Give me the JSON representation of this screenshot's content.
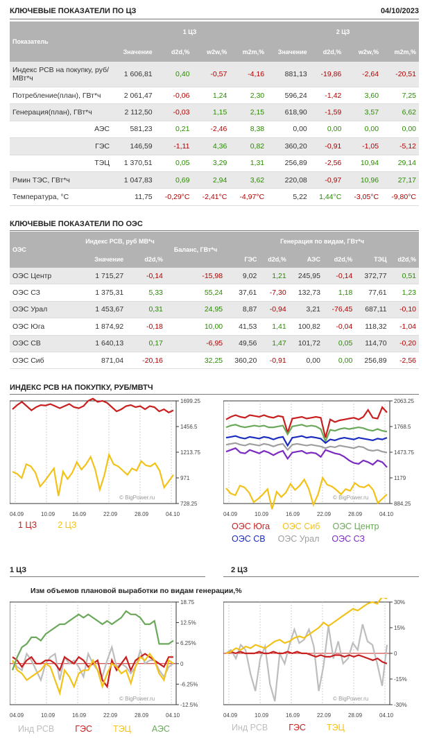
{
  "t1": {
    "title": "КЛЮЧЕВЫЕ ПОКАЗАТЕЛИ ПО ЦЗ",
    "date": "04/10/2023",
    "col0": "Показатель",
    "grp1": "1 ЦЗ",
    "grp2": "2 ЦЗ",
    "sub": [
      "Значение",
      "d2d,%",
      "w2w,%",
      "m2m,%",
      "Значение",
      "d2d,%",
      "w2w,%",
      "m2m,%"
    ],
    "rows": [
      {
        "label": "Индекс РСВ на покупку, руб/МВт*ч",
        "v": [
          "1 606,81",
          "0,40",
          "-0,57",
          "-4,16",
          "881,13",
          "-19,86",
          "-2,64",
          "-20,51"
        ]
      },
      {
        "label": "Потребление(план), ГВт*ч",
        "v": [
          "2 061,47",
          "-0,06",
          "1,24",
          "2,30",
          "596,24",
          "-1,42",
          "3,60",
          "7,25"
        ]
      },
      {
        "label": "Генерация(план), ГВт*ч",
        "v": [
          "2 112,50",
          "-0,03",
          "1,15",
          "2,15",
          "618,90",
          "-1,59",
          "3,57",
          "6,62"
        ]
      },
      {
        "label": "АЭС",
        "v": [
          "581,23",
          "0,21",
          "-2,46",
          "8,38",
          "0,00",
          "0,00",
          "0,00",
          "0,00"
        ]
      },
      {
        "label": "ГЭС",
        "v": [
          "146,59",
          "-1,11",
          "4,36",
          "0,82",
          "360,20",
          "-0,91",
          "-1,05",
          "-5,12"
        ]
      },
      {
        "label": "ТЭЦ",
        "v": [
          "1 370,51",
          "0,05",
          "3,29",
          "1,31",
          "256,89",
          "-2,56",
          "10,94",
          "29,14"
        ]
      },
      {
        "label": "Рмин ТЭС, ГВт*ч",
        "v": [
          "1 047,83",
          "0,69",
          "2,94",
          "3,62",
          "220,08",
          "-0,97",
          "10,96",
          "27,17"
        ]
      },
      {
        "label": "Температура, °С",
        "v": [
          "11,75",
          "-0,29°С",
          "-2,41°С",
          "-4,97°С",
          "5,22",
          "1,44°С",
          "-3,05°С",
          "-9,80°С"
        ]
      }
    ]
  },
  "t2": {
    "title": "КЛЮЧЕВЫЕ ПОКАЗАТЕЛИ ПО ОЭС",
    "col0": "ОЭС",
    "grp1": "Индекс РСВ, руб МВ*ч",
    "grp2": "Баланс, ГВт*ч",
    "grp3": "Генерация по видам, ГВт*ч",
    "sub": [
      "Значение",
      "d2d,%",
      "ГЭС",
      "d2d,%",
      "АЭС",
      "d2d,%",
      "ТЭЦ",
      "d2d,%"
    ],
    "rows": [
      {
        "label": "ОЭС Центр",
        "v": [
          "1 715,27",
          "-0,14",
          "-15,98",
          "9,02",
          "1,21",
          "245,95",
          "-0,14",
          "372,77",
          "0,51"
        ]
      },
      {
        "label": "ОЭС СЗ",
        "v": [
          "1 375,31",
          "5,33",
          "55,24",
          "37,61",
          "-7,30",
          "132,73",
          "1,18",
          "77,61",
          "1,23"
        ]
      },
      {
        "label": "ОЭС Урал",
        "v": [
          "1 453,67",
          "0,31",
          "24,95",
          "8,87",
          "-0,94",
          "3,21",
          "-76,45",
          "687,11",
          "-0,10"
        ]
      },
      {
        "label": "ОЭС Юга",
        "v": [
          "1 874,92",
          "-0,18",
          "10,00",
          "41,53",
          "1,41",
          "100,82",
          "-0,04",
          "118,32",
          "-1,04"
        ]
      },
      {
        "label": "ОЭС СВ",
        "v": [
          "1 640,13",
          "0,17",
          "-6,95",
          "49,56",
          "1,47",
          "101,72",
          "0,05",
          "114,70",
          "-0,20"
        ]
      },
      {
        "label": "ОЭС Сиб",
        "v": [
          "871,04",
          "-20,16",
          "32,25",
          "360,20",
          "-0,91",
          "0,00",
          "0,00",
          "256,89",
          "-2,56"
        ]
      }
    ]
  },
  "s3": {
    "title": "ИНДЕКС РСВ НА ПОКУПКУ, РУБ/МВТЧ"
  },
  "s4": {
    "left": "1 ЦЗ",
    "right": "2 ЦЗ",
    "subtitle": "Изм объемов плановой выработки по видам генерации,%"
  },
  "watermark": "© BigPower.ru",
  "xticks": [
    "04.09",
    "10.09",
    "16.09",
    "22.09",
    "28.09",
    "04.10"
  ],
  "chart_data": [
    {
      "type": "line",
      "id": "price1",
      "ylim": [
        728.25,
        1699.25
      ],
      "yticks": [
        "1699.25",
        "1456.5",
        "1213.75",
        "971",
        "728.25"
      ],
      "series": [
        {
          "name": "1 ЦЗ",
          "color": "#c81e1e",
          "values": [
            1620,
            1660,
            1690,
            1650,
            1610,
            1640,
            1660,
            1655,
            1670,
            1650,
            1630,
            1650,
            1670,
            1640,
            1630,
            1650,
            1700,
            1720,
            1690,
            1700,
            1680,
            1640,
            1600,
            1620,
            1650,
            1660,
            1640,
            1650,
            1620,
            1650,
            1640,
            1600,
            1620,
            1590,
            1610
          ]
        },
        {
          "name": "2 ЦЗ",
          "color": "#f2c219",
          "values": [
            1030,
            1010,
            970,
            1100,
            1080,
            1020,
            890,
            940,
            1000,
            1060,
            800,
            1030,
            960,
            1020,
            1120,
            1050,
            1100,
            1170,
            1050,
            860,
            1000,
            1190,
            1100,
            1080,
            1040,
            1000,
            1060,
            1040,
            1130,
            1090,
            1080,
            1110,
            1040,
            880,
            940,
            1000
          ]
        }
      ]
    },
    {
      "type": "line",
      "id": "price2",
      "ylim": [
        884.25,
        2063.25
      ],
      "yticks": [
        "2063.25",
        "1768.5",
        "1473.75",
        "1179",
        "884.25"
      ],
      "series": [
        {
          "name": "ОЭС Юга",
          "color": "#c81e1e",
          "values": [
            1850,
            1880,
            1900,
            1880,
            1870,
            1900,
            1890,
            1880,
            1900,
            1880,
            1870,
            1890,
            1880,
            1700,
            1860,
            1870,
            1880,
            1860,
            1870,
            1880,
            1870,
            1640,
            1850,
            1820,
            1840,
            1850,
            1860,
            1870,
            1850,
            1880,
            1960,
            1870,
            1860,
            1990,
            1930
          ]
        },
        {
          "name": "ОЭС Сиб",
          "color": "#f2c219",
          "values": [
            1060,
            1000,
            980,
            1090,
            1070,
            1010,
            900,
            940,
            990,
            1050,
            820,
            1020,
            960,
            1010,
            1110,
            1040,
            1090,
            1160,
            1050,
            870,
            990,
            1180,
            1100,
            1080,
            1040,
            990,
            1050,
            1030,
            1120,
            1080,
            1070,
            1100,
            1040,
            890,
            940,
            990
          ]
        },
        {
          "name": "ОЭС Центр",
          "color": "#6aa85a",
          "values": [
            1760,
            1780,
            1790,
            1770,
            1760,
            1770,
            1780,
            1770,
            1780,
            1760,
            1760,
            1770,
            1780,
            1680,
            1770,
            1780,
            1790,
            1770,
            1780,
            1770,
            1740,
            1600,
            1730,
            1720,
            1740,
            1750,
            1740,
            1750,
            1760,
            1750,
            1730,
            1720,
            1740,
            1720,
            1710
          ]
        },
        {
          "name": "ОЭС СВ",
          "color": "#1a2bbf",
          "values": [
            1640,
            1650,
            1660,
            1640,
            1630,
            1650,
            1640,
            1630,
            1650,
            1640,
            1620,
            1640,
            1650,
            1550,
            1640,
            1650,
            1660,
            1640,
            1650,
            1640,
            1630,
            1580,
            1620,
            1610,
            1630,
            1640,
            1630,
            1620,
            1640,
            1630,
            1620,
            1610,
            1630,
            1620,
            1640
          ]
        },
        {
          "name": "ОЭС Урал",
          "color": "#9e9e9e",
          "values": [
            1560,
            1570,
            1580,
            1560,
            1550,
            1570,
            1560,
            1550,
            1570,
            1560,
            1540,
            1560,
            1570,
            1500,
            1560,
            1570,
            1560,
            1550,
            1560,
            1550,
            1540,
            1520,
            1540,
            1530,
            1550,
            1540,
            1530,
            1520,
            1540,
            1530,
            1500,
            1490,
            1500,
            1480,
            1470
          ]
        },
        {
          "name": "ОЭС СЗ",
          "color": "#7b2bbf",
          "values": [
            1480,
            1500,
            1520,
            1470,
            1460,
            1500,
            1480,
            1460,
            1490,
            1470,
            1440,
            1470,
            1490,
            1400,
            1470,
            1480,
            1490,
            1460,
            1470,
            1460,
            1420,
            1500,
            1480,
            1460,
            1450,
            1420,
            1380,
            1350,
            1340,
            1380,
            1360,
            1330,
            1380,
            1360,
            1300
          ]
        }
      ]
    },
    {
      "type": "line",
      "id": "gen1",
      "ylim": [
        -12.5,
        18.75
      ],
      "yticks": [
        "18.75",
        "12.5%",
        "6.25%",
        "0",
        "-6.25%",
        "-12.5%"
      ],
      "series": [
        {
          "name": "Инд РСВ",
          "color": "#bdbdbd",
          "values": [
            1,
            -1,
            -2,
            3,
            1,
            -2,
            -5,
            0,
            2,
            3,
            -5,
            2,
            0,
            1,
            -1,
            -4,
            3,
            0,
            -2,
            -4,
            1,
            5,
            -1,
            0,
            -1,
            -3,
            -1,
            4,
            0,
            1,
            1,
            -2,
            -4,
            -1,
            0
          ]
        },
        {
          "name": "ГЭС",
          "color": "#c81e1e",
          "values": [
            2,
            1,
            -1,
            1,
            2,
            0,
            0,
            1,
            1,
            0,
            -2,
            2,
            1,
            0,
            2,
            1,
            -1,
            0,
            1,
            -5,
            -7,
            1,
            -2,
            0,
            2,
            -2,
            1,
            2,
            3,
            2,
            1,
            0,
            -1,
            2,
            2
          ]
        },
        {
          "name": "ТЭЦ",
          "color": "#f2c219",
          "values": [
            1,
            -2,
            -3,
            -5,
            -4,
            -3,
            -2,
            0,
            -1,
            -5,
            -9,
            -2,
            -4,
            -7,
            -3,
            -2,
            -2,
            1,
            -2,
            -7,
            -3,
            0,
            -1,
            -3,
            -2,
            -6,
            -1,
            2,
            1,
            3,
            1,
            -3,
            -5,
            1,
            0
          ]
        },
        {
          "name": "АЭС",
          "color": "#6aa85a",
          "values": [
            -2,
            2,
            5,
            6,
            8,
            8,
            7,
            9,
            10,
            11,
            12,
            12,
            13,
            14,
            15,
            14,
            15,
            14,
            13,
            12,
            13,
            12,
            13,
            14,
            16,
            15,
            15,
            14,
            12,
            12,
            13,
            6,
            6,
            6,
            7
          ]
        }
      ]
    },
    {
      "type": "line",
      "id": "gen2",
      "ylim": [
        -30,
        30
      ],
      "yticks": [
        "30%",
        "15%",
        "0",
        "-15%",
        "-30%"
      ],
      "series": [
        {
          "name": "Инд РСВ",
          "color": "#bdbdbd",
          "values": [
            0,
            2,
            -3,
            5,
            2,
            -12,
            -22,
            -3,
            4,
            -18,
            -28,
            0,
            -6,
            5,
            14,
            6,
            8,
            14,
            4,
            -22,
            -7,
            16,
            -3,
            7,
            -6,
            -3,
            6,
            2,
            17,
            7,
            5,
            -6,
            -19,
            5
          ]
        },
        {
          "name": "ГЭС",
          "color": "#c81e1e",
          "values": [
            0,
            1,
            0,
            1,
            0,
            0,
            0,
            1,
            0,
            0,
            1,
            0,
            0,
            1,
            0,
            1,
            0,
            0,
            -1,
            -2,
            -1,
            -2,
            -2,
            -1,
            -1,
            -2,
            -1,
            -2,
            -1,
            -2,
            -3,
            -4,
            -3,
            -5,
            -6
          ]
        },
        {
          "name": "ТЭЦ",
          "color": "#f2c219",
          "values": [
            0,
            1,
            3,
            2,
            4,
            3,
            5,
            4,
            3,
            5,
            7,
            8,
            6,
            7,
            9,
            10,
            9,
            11,
            13,
            15,
            18,
            16,
            18,
            20,
            22,
            24,
            26,
            25,
            27,
            29,
            30,
            29,
            33,
            32
          ]
        }
      ]
    }
  ],
  "legend1": [
    "1 ЦЗ",
    "2 ЦЗ"
  ],
  "legend2": [
    [
      "ОЭС Юга",
      "ОЭС Сиб",
      "ОЭС Центр"
    ],
    [
      "ОЭС СВ",
      "ОЭС Урал",
      "ОЭС СЗ"
    ]
  ],
  "legend3": [
    "Инд РСВ",
    "ГЭС",
    "ТЭЦ",
    "АЭС"
  ],
  "legend4": [
    "Инд РСВ",
    "ГЭС",
    "ТЭЦ"
  ]
}
